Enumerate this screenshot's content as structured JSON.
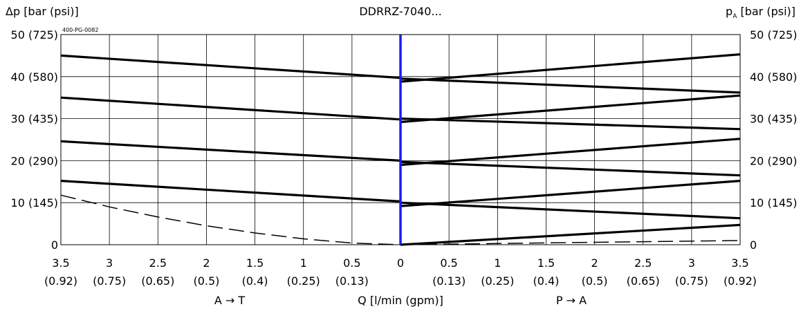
{
  "chart_data": {
    "type": "line",
    "title": "DDRRZ-7040...",
    "code": "400-PG-0082",
    "left_axis_label": "Δp [bar (psi)]",
    "right_axis_label_main": "p",
    "right_axis_label_sub": "A",
    "right_axis_label_rest": " [bar (psi)]",
    "xlabel": "Q [l/min (gpm)]",
    "left_direction": "A → T",
    "right_direction": "P → A",
    "xlim": [
      -3.5,
      3.5
    ],
    "ylim": [
      0,
      50
    ],
    "grid": true,
    "y_ticks": [
      {
        "value": 0,
        "label": "0"
      },
      {
        "value": 10,
        "label": "10 (145)"
      },
      {
        "value": 20,
        "label": "20 (290)"
      },
      {
        "value": 30,
        "label": "30 (435)"
      },
      {
        "value": 40,
        "label": "40 (580)"
      },
      {
        "value": 50,
        "label": "50 (725)"
      }
    ],
    "x_ticks": [
      {
        "value": -3.5,
        "label": "3.5",
        "sub": "(0.92)"
      },
      {
        "value": -3,
        "label": "3",
        "sub": "(0.75)"
      },
      {
        "value": -2.5,
        "label": "2.5",
        "sub": "(0.65)"
      },
      {
        "value": -2,
        "label": "2",
        "sub": "(0.5)"
      },
      {
        "value": -1.5,
        "label": "1.5",
        "sub": "(0.4)"
      },
      {
        "value": -1,
        "label": "1",
        "sub": "(0.25)"
      },
      {
        "value": -0.5,
        "label": "0.5",
        "sub": "(0.13)"
      },
      {
        "value": 0,
        "label": "0",
        "sub": ""
      },
      {
        "value": 0.5,
        "label": "0.5",
        "sub": "(0.13)"
      },
      {
        "value": 1,
        "label": "1",
        "sub": "(0.25)"
      },
      {
        "value": 1.5,
        "label": "1.5",
        "sub": "(0.4)"
      },
      {
        "value": 2,
        "label": "2",
        "sub": "(0.5)"
      },
      {
        "value": 2.5,
        "label": "2.5",
        "sub": "(0.65)"
      },
      {
        "value": 3,
        "label": "3",
        "sub": "(0.75)"
      },
      {
        "value": 3.5,
        "label": "3.5",
        "sub": "(0.92)"
      }
    ],
    "zero_line_color": "#1a1aff",
    "series": [
      {
        "style": "solid",
        "points": [
          [
            -3.5,
            45.0
          ],
          [
            0,
            39.7
          ]
        ]
      },
      {
        "style": "solid",
        "points": [
          [
            -3.5,
            35.0
          ],
          [
            0,
            29.8
          ]
        ]
      },
      {
        "style": "solid",
        "points": [
          [
            -3.5,
            24.6
          ],
          [
            0,
            20.0
          ]
        ]
      },
      {
        "style": "solid",
        "points": [
          [
            -3.5,
            15.2
          ],
          [
            0,
            10.3
          ]
        ]
      },
      {
        "style": "dashed",
        "points": [
          [
            -3.5,
            11.8
          ],
          [
            -3.0,
            9.0
          ],
          [
            -2.5,
            6.6
          ],
          [
            -2.0,
            4.5
          ],
          [
            -1.5,
            2.8
          ],
          [
            -1.0,
            1.4
          ],
          [
            -0.5,
            0.4
          ],
          [
            0,
            0.0
          ]
        ]
      },
      {
        "style": "solid",
        "points": [
          [
            0,
            0.0
          ],
          [
            3.5,
            4.7
          ]
        ]
      },
      {
        "style": "solid",
        "points": [
          [
            0,
            9.2
          ],
          [
            3.5,
            15.2
          ]
        ]
      },
      {
        "style": "solid",
        "points": [
          [
            0,
            10.0
          ],
          [
            3.5,
            6.3
          ]
        ]
      },
      {
        "style": "solid",
        "points": [
          [
            0,
            19.0
          ],
          [
            3.5,
            25.2
          ]
        ]
      },
      {
        "style": "solid",
        "points": [
          [
            0,
            19.7
          ],
          [
            3.5,
            16.5
          ]
        ]
      },
      {
        "style": "solid",
        "points": [
          [
            0,
            29.2
          ],
          [
            3.5,
            35.5
          ]
        ]
      },
      {
        "style": "solid",
        "points": [
          [
            0,
            30.0
          ],
          [
            3.5,
            27.5
          ]
        ]
      },
      {
        "style": "solid",
        "points": [
          [
            0,
            38.8
          ],
          [
            3.5,
            45.3
          ]
        ]
      },
      {
        "style": "solid",
        "points": [
          [
            0,
            39.5
          ],
          [
            3.5,
            36.2
          ]
        ]
      },
      {
        "style": "dashed",
        "points": [
          [
            0,
            0.0
          ],
          [
            3.5,
            1.0
          ]
        ]
      }
    ]
  }
}
